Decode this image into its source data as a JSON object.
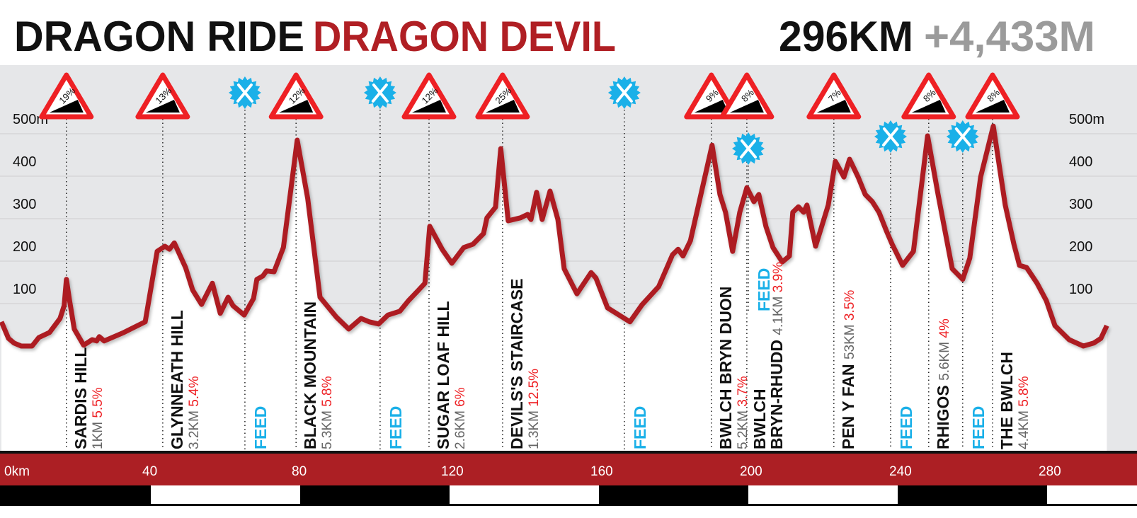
{
  "header": {
    "title_black": "DRAGON RIDE",
    "title_red": "DRAGON DEVIL",
    "distance": "296KM",
    "climbing": "+4,433M"
  },
  "colors": {
    "brand_red": "#b01f24",
    "feed_blue": "#1ab0e8",
    "sign_red": "#ee2024",
    "sky_gray": "#e6e7e9",
    "sub_gray": "#666666"
  },
  "chart_data": {
    "type": "area",
    "title": "",
    "xlabel": "",
    "ylabel": "",
    "x_unit": "km",
    "y_unit": "m",
    "xlim": [
      0,
      296
    ],
    "ylim": [
      0,
      500
    ],
    "grid": true,
    "x_ticks": [
      "0km",
      "40",
      "80",
      "120",
      "160",
      "200",
      "240",
      "280"
    ],
    "x_tick_values": [
      0,
      40,
      80,
      120,
      160,
      200,
      240,
      280
    ],
    "y_ticks": [
      "500m",
      "400",
      "300",
      "200",
      "100"
    ],
    "y_tick_values": [
      500,
      400,
      300,
      200,
      100
    ],
    "profile": [
      [
        0,
        57
      ],
      [
        1.9,
        18
      ],
      [
        3.4,
        7
      ],
      [
        5.3,
        0
      ],
      [
        8.2,
        0
      ],
      [
        10,
        20
      ],
      [
        12.9,
        32
      ],
      [
        15.7,
        65
      ],
      [
        16.8,
        95
      ],
      [
        17.4,
        157
      ],
      [
        18.2,
        110
      ],
      [
        19.5,
        40
      ],
      [
        22,
        2
      ],
      [
        24.3,
        15
      ],
      [
        25.5,
        12
      ],
      [
        26.2,
        22
      ],
      [
        27.5,
        12
      ],
      [
        32.8,
        32
      ],
      [
        38.5,
        57
      ],
      [
        41.7,
        223
      ],
      [
        43.8,
        235
      ],
      [
        45,
        228
      ],
      [
        46.3,
        243
      ],
      [
        49.3,
        185
      ],
      [
        51.2,
        132
      ],
      [
        53.6,
        98
      ],
      [
        56.5,
        148
      ],
      [
        58.6,
        77
      ],
      [
        60.7,
        115
      ],
      [
        62,
        95
      ],
      [
        65,
        73
      ],
      [
        67.5,
        112
      ],
      [
        68.4,
        157
      ],
      [
        70,
        165
      ],
      [
        71,
        177
      ],
      [
        73,
        175
      ],
      [
        75.5,
        232
      ],
      [
        79.2,
        485
      ],
      [
        82,
        348
      ],
      [
        85.3,
        115
      ],
      [
        89.7,
        68
      ],
      [
        93,
        40
      ],
      [
        96.3,
        65
      ],
      [
        98.5,
        57
      ],
      [
        101,
        52
      ],
      [
        103.5,
        73
      ],
      [
        106.7,
        82
      ],
      [
        109,
        107
      ],
      [
        111.5,
        130
      ],
      [
        113.4,
        148
      ],
      [
        114.7,
        282
      ],
      [
        118,
        228
      ],
      [
        120.6,
        195
      ],
      [
        123.8,
        232
      ],
      [
        126.3,
        240
      ],
      [
        129.1,
        265
      ],
      [
        130,
        302
      ],
      [
        132.3,
        327
      ],
      [
        133.7,
        465
      ],
      [
        135.7,
        295
      ],
      [
        139,
        302
      ],
      [
        140.9,
        310
      ],
      [
        141.8,
        298
      ],
      [
        143.3,
        362
      ],
      [
        144.8,
        298
      ],
      [
        146.9,
        365
      ],
      [
        149,
        298
      ],
      [
        150.7,
        182
      ],
      [
        154.1,
        123
      ],
      [
        157.9,
        173
      ],
      [
        159.2,
        160
      ],
      [
        162.3,
        90
      ],
      [
        168.3,
        57
      ],
      [
        171.6,
        98
      ],
      [
        176,
        140
      ],
      [
        179.7,
        215
      ],
      [
        181.2,
        228
      ],
      [
        182.5,
        212
      ],
      [
        184.5,
        248
      ],
      [
        187.3,
        357
      ],
      [
        190.3,
        473
      ],
      [
        192.4,
        357
      ],
      [
        193.9,
        315
      ],
      [
        195.8,
        223
      ],
      [
        197.7,
        315
      ],
      [
        199.6,
        373
      ],
      [
        201.5,
        340
      ],
      [
        202.8,
        357
      ],
      [
        204.7,
        282
      ],
      [
        206.6,
        232
      ],
      [
        209.1,
        198
      ],
      [
        211,
        212
      ],
      [
        211.9,
        315
      ],
      [
        213.4,
        328
      ],
      [
        214.8,
        315
      ],
      [
        215.7,
        332
      ],
      [
        218,
        235
      ],
      [
        221.4,
        332
      ],
      [
        223.3,
        435
      ],
      [
        225.6,
        398
      ],
      [
        227.1,
        440
      ],
      [
        229.4,
        398
      ],
      [
        231.3,
        357
      ],
      [
        233.2,
        340
      ],
      [
        235,
        315
      ],
      [
        236.9,
        273
      ],
      [
        238.5,
        240
      ],
      [
        241.3,
        190
      ],
      [
        244.2,
        223
      ],
      [
        248,
        495
      ],
      [
        250.8,
        357
      ],
      [
        254.6,
        182
      ],
      [
        257.4,
        157
      ],
      [
        259.3,
        207
      ],
      [
        262.2,
        398
      ],
      [
        265.6,
        518
      ],
      [
        268.8,
        332
      ],
      [
        271.1,
        240
      ],
      [
        272.6,
        190
      ],
      [
        274.5,
        185
      ],
      [
        277.3,
        148
      ],
      [
        279.8,
        107
      ],
      [
        282.1,
        48
      ],
      [
        285.9,
        15
      ],
      [
        289.7,
        0
      ],
      [
        292.5,
        7
      ],
      [
        294.4,
        18
      ],
      [
        296,
        48
      ]
    ],
    "climbs": [
      {
        "name": "SARDIS HILL",
        "length": "1KM",
        "avg_gradient": "5.5%",
        "max_gradient": "19%",
        "km": 17.4
      },
      {
        "name": "GLYNNEATH HILL",
        "length": "3.2KM",
        "avg_gradient": "5.4%",
        "max_gradient": "13%",
        "km": 43.2
      },
      {
        "name": "BLACK MOUNTAIN",
        "length": "5.3KM",
        "avg_gradient": "5.8%",
        "max_gradient": "12%",
        "km": 78.9
      },
      {
        "name": "SUGAR LOAF HILL",
        "length": "2.6KM",
        "avg_gradient": "6%",
        "max_gradient": "12%",
        "km": 114.5
      },
      {
        "name": "DEVILS'S STAIRCASE",
        "length": "1.3KM",
        "avg_gradient": "12.5%",
        "max_gradient": "25%",
        "km": 134.2
      },
      {
        "name": "BWLCH BRYN DUON",
        "length": "5.2KM",
        "avg_gradient": "3.7%",
        "max_gradient": "9%",
        "km": 190.1
      },
      {
        "name": "BWLCH",
        "name_line2": "BRYN-RHUDD",
        "length": "4.1KM",
        "avg_gradient": "3.9%",
        "max_gradient": "8%",
        "km": 199.6
      },
      {
        "name": "PEN Y FAN",
        "length": "53KM",
        "avg_gradient": "3.5%",
        "max_gradient": "7%",
        "km": 222.9
      },
      {
        "name": "RHIGOS",
        "length": "5.6KM",
        "avg_gradient": "4%",
        "max_gradient": "8%",
        "km": 248.3
      },
      {
        "name": "THE BWLCH",
        "length": "4.4KM",
        "avg_gradient": "5.8%",
        "max_gradient": "8%",
        "km": 265.4
      }
    ],
    "feeds": [
      {
        "label": "FEED",
        "km": 65.2,
        "icon": "cutlery-icon"
      },
      {
        "label": "FEED",
        "km": 101.4,
        "icon": "cutlery-icon"
      },
      {
        "label": "FEED",
        "km": 166.8,
        "icon": "cutlery-icon"
      },
      {
        "label": "FEED",
        "km": 200.0,
        "icon": "cutlery-icon",
        "raised": true
      },
      {
        "label": "FEED",
        "km": 238.1,
        "icon": "cutlery-icon"
      },
      {
        "label": "FEED",
        "km": 257.4,
        "icon": "cutlery-icon"
      }
    ]
  }
}
